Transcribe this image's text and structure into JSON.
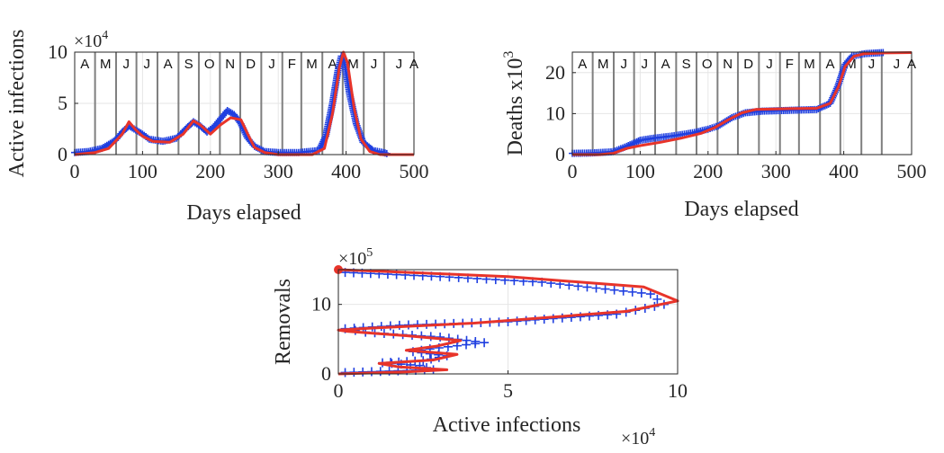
{
  "colors": {
    "data": "#1f3fe0",
    "model": "#e8342a",
    "month_line": "#7f7f7f",
    "grid": "#e6e6e6",
    "axis": "#262626"
  },
  "chart_data": [
    {
      "type": "line",
      "ylabel": "Active  infections",
      "xlabel": "Days elapsed",
      "exponent": "×10^4",
      "exponent_base": "×10",
      "exponent_power": "4",
      "xlim": [
        0,
        500
      ],
      "ylim": [
        0,
        10
      ],
      "x_ticks": [
        "0",
        "100",
        "200",
        "300",
        "400",
        "500"
      ],
      "y_ticks": [
        "0",
        "5",
        "10"
      ],
      "months": [
        "A",
        "M",
        "J",
        "J",
        "A",
        "S",
        "O",
        "N",
        "D",
        "J",
        "F",
        "M",
        "A",
        "M",
        "J",
        "J",
        "A"
      ],
      "month_boundaries": [
        30,
        61,
        91,
        122,
        153,
        183,
        214,
        244,
        275,
        306,
        334,
        365,
        395,
        426,
        456
      ],
      "series": [
        {
          "marker": "+",
          "points": [
            [
              0,
              0.2
            ],
            [
              20,
              0.3
            ],
            [
              40,
              0.6
            ],
            [
              60,
              1.4
            ],
            [
              70,
              2.2
            ],
            [
              80,
              2.8
            ],
            [
              90,
              2.4
            ],
            [
              100,
              2.0
            ],
            [
              110,
              1.5
            ],
            [
              130,
              1.3
            ],
            [
              150,
              1.6
            ],
            [
              165,
              2.6
            ],
            [
              175,
              3.2
            ],
            [
              185,
              2.8
            ],
            [
              195,
              2.2
            ],
            [
              205,
              2.7
            ],
            [
              215,
              3.5
            ],
            [
              225,
              4.3
            ],
            [
              235,
              3.9
            ],
            [
              245,
              3.0
            ],
            [
              255,
              1.6
            ],
            [
              265,
              0.8
            ],
            [
              280,
              0.3
            ],
            [
              300,
              0.2
            ],
            [
              330,
              0.2
            ],
            [
              360,
              0.4
            ],
            [
              370,
              1.8
            ],
            [
              380,
              5.0
            ],
            [
              388,
              8.2
            ],
            [
              393,
              9.6
            ],
            [
              397,
              9.2
            ],
            [
              405,
              6.0
            ],
            [
              415,
              3.0
            ],
            [
              425,
              1.2
            ],
            [
              440,
              0.4
            ],
            [
              455,
              0.2
            ],
            [
              460,
              0.1
            ]
          ]
        },
        {
          "points": [
            [
              0,
              0
            ],
            [
              30,
              0.2
            ],
            [
              50,
              0.6
            ],
            [
              70,
              2.0
            ],
            [
              80,
              3.2
            ],
            [
              90,
              2.4
            ],
            [
              100,
              1.8
            ],
            [
              115,
              1.3
            ],
            [
              140,
              1.2
            ],
            [
              160,
              2.0
            ],
            [
              175,
              3.3
            ],
            [
              185,
              2.9
            ],
            [
              200,
              2.0
            ],
            [
              215,
              2.9
            ],
            [
              230,
              3.6
            ],
            [
              245,
              3.4
            ],
            [
              255,
              2.0
            ],
            [
              265,
              0.7
            ],
            [
              280,
              0.2
            ],
            [
              300,
              0
            ],
            [
              350,
              0
            ],
            [
              368,
              0.6
            ],
            [
              380,
              4.0
            ],
            [
              390,
              8.5
            ],
            [
              396,
              10.0
            ],
            [
              402,
              9.0
            ],
            [
              412,
              4.5
            ],
            [
              422,
              1.5
            ],
            [
              435,
              0.3
            ],
            [
              450,
              0
            ],
            [
              500,
              0
            ]
          ]
        }
      ]
    },
    {
      "type": "line",
      "ylabel": "Deaths x10^3",
      "ylabel_base": "Deaths x10",
      "ylabel_power": "3",
      "xlabel": "Days elapsed",
      "xlim": [
        0,
        500
      ],
      "ylim": [
        0,
        25
      ],
      "x_ticks": [
        "0",
        "100",
        "200",
        "300",
        "400",
        "500"
      ],
      "y_ticks": [
        "0",
        "10",
        "20"
      ],
      "months": [
        "A",
        "M",
        "J",
        "J",
        "A",
        "S",
        "O",
        "N",
        "D",
        "J",
        "F",
        "M",
        "A",
        "M",
        "J",
        "J",
        "A"
      ],
      "month_boundaries": [
        30,
        61,
        91,
        122,
        153,
        183,
        214,
        244,
        275,
        306,
        334,
        365,
        395,
        426,
        456
      ],
      "series": [
        {
          "marker": "+",
          "points": [
            [
              0,
              0.3
            ],
            [
              30,
              0.4
            ],
            [
              60,
              0.7
            ],
            [
              80,
              2.0
            ],
            [
              100,
              3.5
            ],
            [
              120,
              4.0
            ],
            [
              150,
              4.6
            ],
            [
              180,
              5.4
            ],
            [
              200,
              6.2
            ],
            [
              215,
              7.0
            ],
            [
              235,
              9.0
            ],
            [
              255,
              10.2
            ],
            [
              280,
              10.6
            ],
            [
              320,
              10.8
            ],
            [
              360,
              11.0
            ],
            [
              380,
              12.5
            ],
            [
              392,
              17.0
            ],
            [
              402,
              22.0
            ],
            [
              412,
              24.0
            ],
            [
              430,
              24.6
            ],
            [
              458,
              24.9
            ]
          ]
        },
        {
          "points": [
            [
              0,
              0
            ],
            [
              40,
              0
            ],
            [
              60,
              0.3
            ],
            [
              80,
              1.5
            ],
            [
              100,
              2.2
            ],
            [
              130,
              3.0
            ],
            [
              160,
              4.0
            ],
            [
              190,
              5.2
            ],
            [
              210,
              6.6
            ],
            [
              230,
              8.5
            ],
            [
              250,
              10.2
            ],
            [
              270,
              11.0
            ],
            [
              320,
              11.2
            ],
            [
              360,
              11.3
            ],
            [
              380,
              12.5
            ],
            [
              392,
              16.5
            ],
            [
              402,
              21.5
            ],
            [
              415,
              24.0
            ],
            [
              430,
              24.6
            ],
            [
              460,
              24.8
            ],
            [
              500,
              24.9
            ]
          ]
        }
      ]
    },
    {
      "type": "line",
      "ylabel": "Removals",
      "xlabel": "Active infections",
      "x_exponent": "×10^4",
      "x_exponent_base": "×10",
      "x_exponent_power": "4",
      "y_exponent": "×10^5",
      "y_exponent_base": "×10",
      "y_exponent_power": "5",
      "xlim": [
        0,
        10
      ],
      "ylim": [
        0,
        15
      ],
      "x_ticks": [
        "0",
        "5",
        "10"
      ],
      "y_ticks": [
        "0",
        "10"
      ],
      "series": [
        {
          "marker": "+",
          "points": [
            [
              0.2,
              0.2
            ],
            [
              1.5,
              0.4
            ],
            [
              2.8,
              0.6
            ],
            [
              2.4,
              1.2
            ],
            [
              1.3,
              1.6
            ],
            [
              2.5,
              1.9
            ],
            [
              3.2,
              2.6
            ],
            [
              2.2,
              3.2
            ],
            [
              2.7,
              3.6
            ],
            [
              4.3,
              4.5
            ],
            [
              3.0,
              5.3
            ],
            [
              0.8,
              6.0
            ],
            [
              0.2,
              6.5
            ],
            [
              1.8,
              7.0
            ],
            [
              5.0,
              7.5
            ],
            [
              8.2,
              8.6
            ],
            [
              9.6,
              10.0
            ],
            [
              9.2,
              11.5
            ],
            [
              6.0,
              13.2
            ],
            [
              3.0,
              14.0
            ],
            [
              1.2,
              14.4
            ],
            [
              0.2,
              14.6
            ]
          ]
        },
        {
          "points": [
            [
              0,
              0
            ],
            [
              2.0,
              0.3
            ],
            [
              3.2,
              0.6
            ],
            [
              1.8,
              1.0
            ],
            [
              1.2,
              1.5
            ],
            [
              2.8,
              2.0
            ],
            [
              3.5,
              2.8
            ],
            [
              2.0,
              3.4
            ],
            [
              2.9,
              4.0
            ],
            [
              3.6,
              4.8
            ],
            [
              2.0,
              5.5
            ],
            [
              0.3,
              6.1
            ],
            [
              0,
              6.3
            ],
            [
              1.0,
              6.6
            ],
            [
              4.0,
              7.3
            ],
            [
              8.5,
              9.0
            ],
            [
              10.0,
              10.5
            ],
            [
              9.0,
              12.5
            ],
            [
              5.0,
              14.0
            ],
            [
              1.5,
              14.7
            ],
            [
              0,
              15.0
            ]
          ]
        }
      ],
      "start_marker": [
        0,
        15
      ]
    }
  ]
}
